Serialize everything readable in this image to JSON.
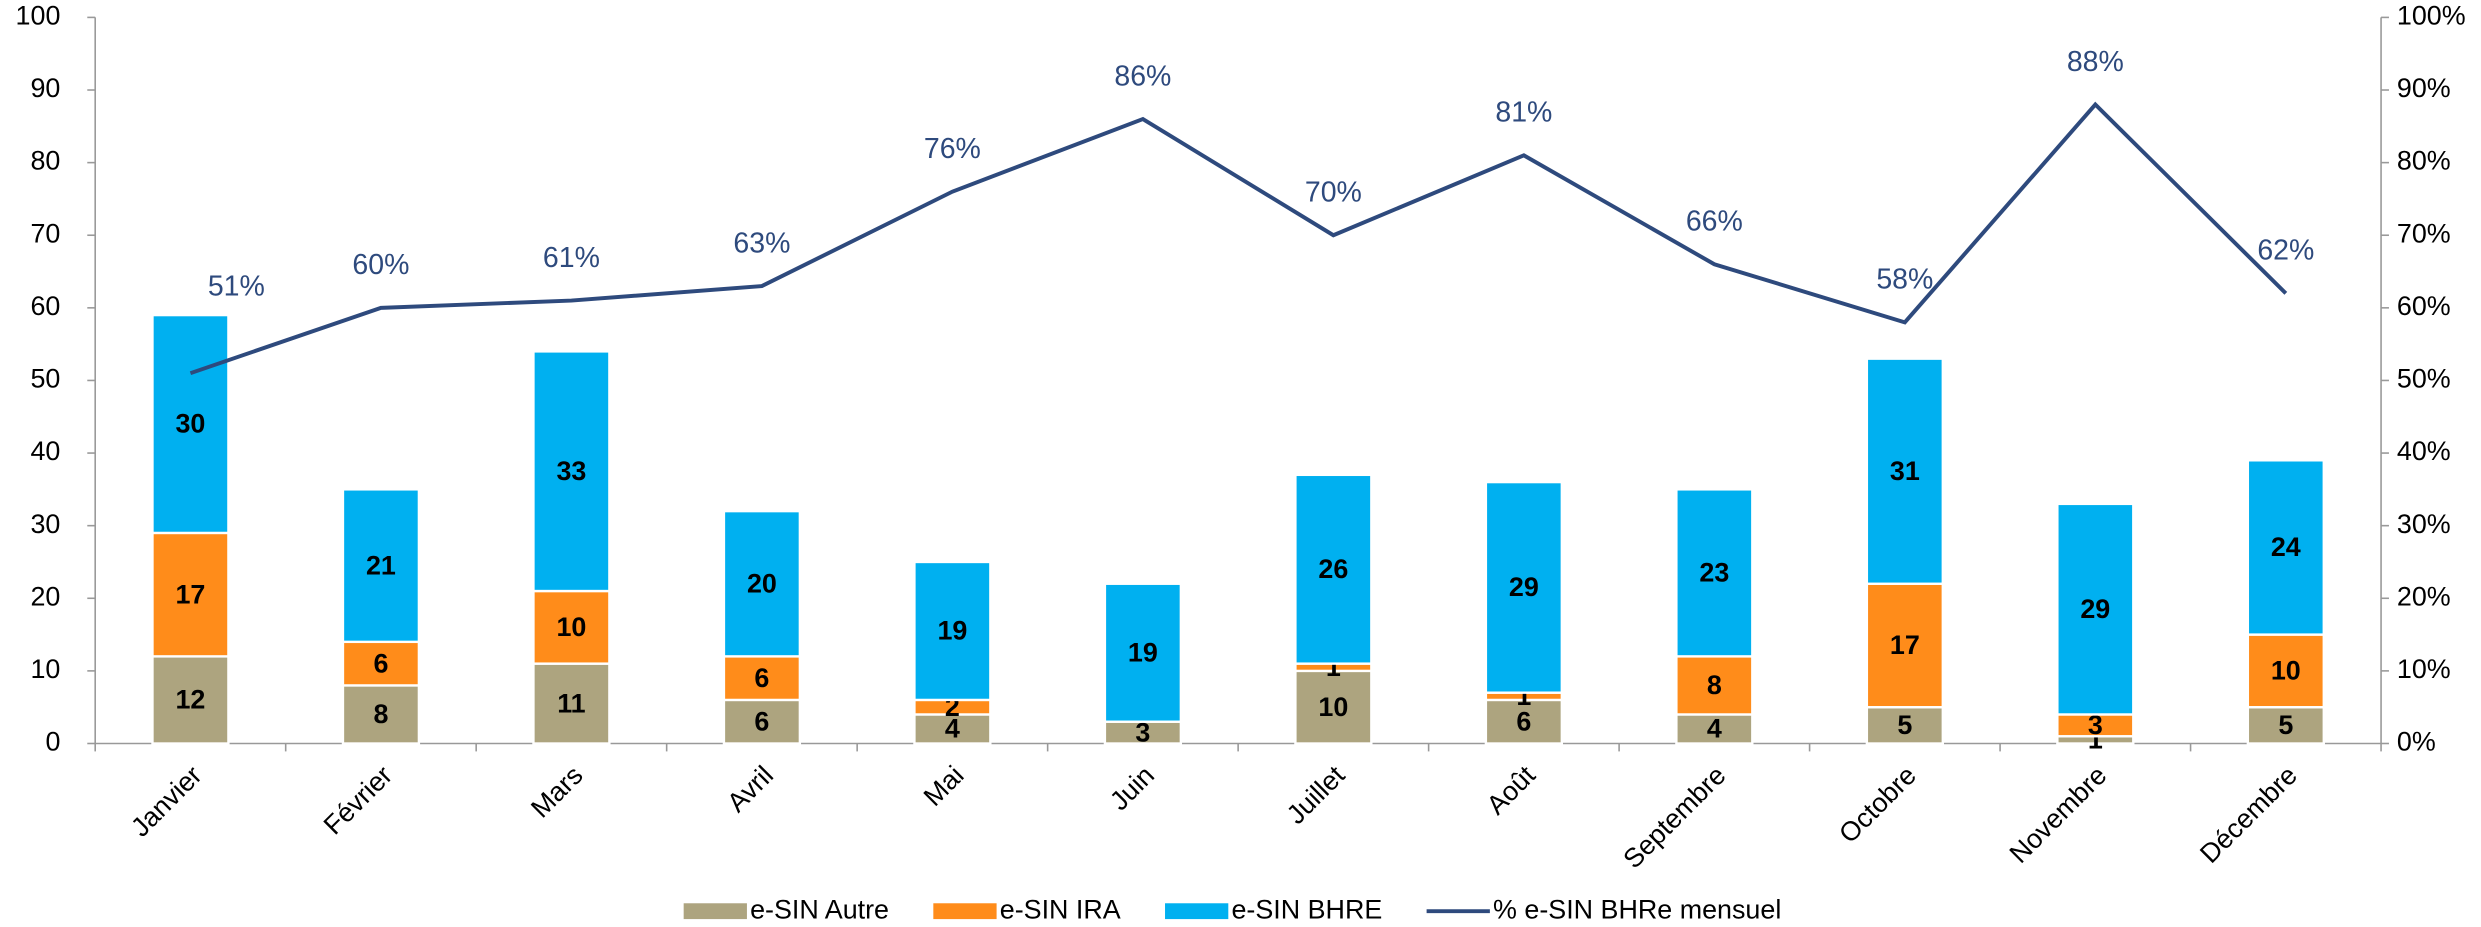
{
  "chart_data": {
    "type": "bar",
    "categories": [
      "Janvier",
      "Février",
      "Mars",
      "Avril",
      "Mai",
      "Juin",
      "Juillet",
      "Août",
      "Septembre",
      "Octobre",
      "Novembre",
      "Décembre"
    ],
    "series": [
      {
        "name": "e-SIN Autre",
        "color": "#ada47f",
        "values": [
          12,
          8,
          11,
          6,
          4,
          3,
          10,
          6,
          4,
          5,
          1,
          5
        ]
      },
      {
        "name": "e-SIN IRA",
        "color": "#ff8c1a",
        "values": [
          17,
          6,
          10,
          6,
          2,
          null,
          1,
          1,
          8,
          17,
          3,
          10
        ]
      },
      {
        "name": "e-SIN BHRE",
        "color": "#00b0f0",
        "values": [
          30,
          21,
          33,
          20,
          19,
          19,
          26,
          29,
          23,
          31,
          29,
          24
        ]
      },
      {
        "name": "% e-SIN BHRe mensuel",
        "color": "#2e4a7d",
        "type": "line",
        "axis": "y2",
        "values": [
          51,
          60,
          61,
          63,
          76,
          86,
          70,
          81,
          66,
          58,
          88,
          62
        ],
        "value_labels": [
          "51%",
          "60%",
          "61%",
          "63%",
          "76%",
          "86%",
          "70%",
          "81%",
          "66%",
          "58%",
          "88%",
          "62%"
        ]
      }
    ],
    "stacked": true,
    "ylim": [
      0,
      100
    ],
    "yticks": [
      0,
      10,
      20,
      30,
      40,
      50,
      60,
      70,
      80,
      90,
      100
    ],
    "y2lim": [
      0,
      100
    ],
    "y2ticks": [
      {
        "value": 0,
        "label": "0%"
      },
      {
        "value": 10,
        "label": "10%"
      },
      {
        "value": 20,
        "label": "20%"
      },
      {
        "value": 30,
        "label": "30%"
      },
      {
        "value": 40,
        "label": "40%"
      },
      {
        "value": 50,
        "label": "50%"
      },
      {
        "value": 60,
        "label": "60%"
      },
      {
        "value": 70,
        "label": "70%"
      },
      {
        "value": 80,
        "label": "80%"
      },
      {
        "value": 90,
        "label": "90%"
      },
      {
        "value": 100,
        "label": "100%"
      }
    ],
    "legend": "bottom",
    "grid": false
  }
}
